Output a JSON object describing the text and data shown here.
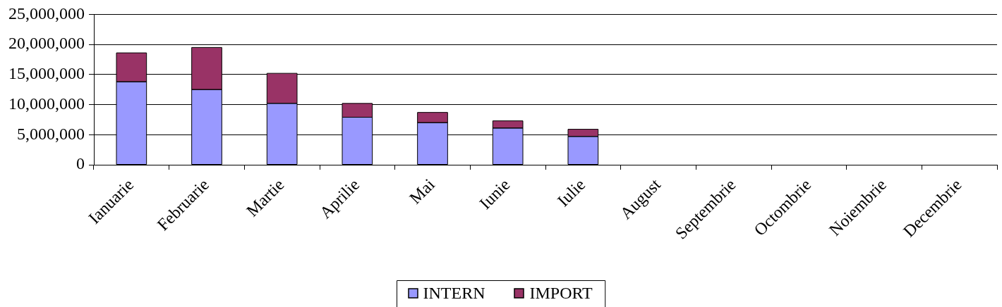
{
  "chart_data": {
    "type": "bar",
    "stacked": true,
    "categories": [
      "Ianuarie",
      "Februarie",
      "Martie",
      "Aprilie",
      "Mai",
      "Iunie",
      "Iulie",
      "August",
      "Septembrie",
      "Octombrie",
      "Noiembrie",
      "Decembrie"
    ],
    "series": [
      {
        "name": "INTERN",
        "color": "#9999ff",
        "values": [
          13800000,
          12500000,
          10200000,
          7900000,
          7000000,
          6100000,
          4700000,
          null,
          null,
          null,
          null,
          null
        ]
      },
      {
        "name": "IMPORT",
        "color": "#993366",
        "values": [
          4800000,
          7000000,
          5000000,
          2300000,
          1700000,
          1200000,
          1200000,
          null,
          null,
          null,
          null,
          null
        ]
      }
    ],
    "ylim": [
      0,
      25000000
    ],
    "yticks": [
      0,
      {
        "value": 5000000,
        "label": "5,000,000"
      },
      {
        "value": 10000000,
        "label": "10,000,000"
      },
      {
        "value": 15000000,
        "label": "15,000,000"
      },
      {
        "value": 20000000,
        "label": "20,000,000"
      },
      {
        "value": 25000000,
        "label": "25,000,000"
      }
    ],
    "grid": "y",
    "legend": "bottom"
  }
}
